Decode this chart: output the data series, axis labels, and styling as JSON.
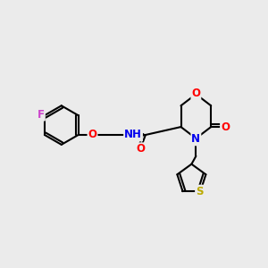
{
  "bg_color": "#ebebeb",
  "bond_color": "#000000",
  "atom_colors": {
    "F": "#cc44cc",
    "O": "#ff0000",
    "N": "#0000ee",
    "S": "#bbaa00",
    "H": "#000000",
    "C": "#000000"
  },
  "figsize": [
    3.0,
    3.0
  ],
  "dpi": 100,
  "lw": 1.5,
  "fontsize": 8.5
}
